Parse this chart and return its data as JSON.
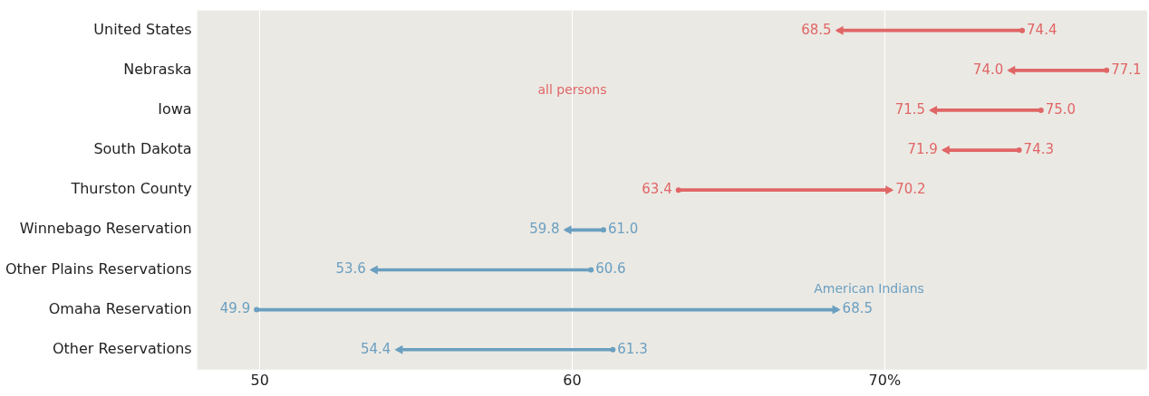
{
  "chart_data": {
    "type": "bar",
    "orientation": "horizontal",
    "categories": [
      "United States",
      "Nebraska",
      "Iowa",
      "South Dakota",
      "Thurston County",
      "Winnebago Reservation",
      "Other Plains Reservations",
      "Omaha Reservation",
      "Other Reservations"
    ],
    "base": [
      74.4,
      77.1,
      75.0,
      74.3,
      63.4,
      61.0,
      60.6,
      49.9,
      61.3
    ],
    "values": [
      -5.9,
      -3.1,
      -3.5,
      -2.4,
      6.8,
      -1.2,
      -7.0,
      18.6,
      -6.9
    ],
    "colors": [
      "#e06666",
      "#e06666",
      "#e06666",
      "#e06666",
      "#e06666",
      "#6a9fc0",
      "#6a9fc0",
      "#6a9fc0",
      "#6a9fc0"
    ],
    "xlim": [
      48,
      78.4
    ],
    "xticks": [
      50,
      60,
      {
        "value": 70,
        "label": "70%"
      }
    ],
    "grid": "x",
    "annotations": [
      {
        "text": "68.5",
        "x": 68.5,
        "y": "United States"
      },
      {
        "text": "74.4",
        "x": 74.4,
        "y": "United States"
      },
      {
        "text": "74.0",
        "x": 74.0,
        "y": "Nebraska"
      },
      {
        "text": "77.1",
        "x": 77.1,
        "y": "Nebraska"
      },
      {
        "text": "71.5",
        "x": 71.5,
        "y": "Iowa"
      },
      {
        "text": "75.0",
        "x": 75.0,
        "y": "Iowa"
      },
      {
        "text": "71.9",
        "x": 71.9,
        "y": "South Dakota"
      },
      {
        "text": "74.3",
        "x": 74.3,
        "y": "South Dakota"
      },
      {
        "text": "63.4",
        "x": 63.4,
        "y": "Thurston County"
      },
      {
        "text": "70.2",
        "x": 70.2,
        "y": "Thurston County"
      },
      {
        "text": "59.8",
        "x": 59.8,
        "y": "Winnebago Reservation"
      },
      {
        "text": "61.0",
        "x": 61.0,
        "y": "Winnebago Reservation"
      },
      {
        "text": "53.6",
        "x": 53.6,
        "y": "Other Plains Reservations"
      },
      {
        "text": "60.6",
        "x": 60.6,
        "y": "Other Plains Reservations"
      },
      {
        "text": "49.9",
        "x": 49.9,
        "y": "Omaha Reservation"
      },
      {
        "text": "68.5",
        "x": 68.5,
        "y": "Omaha Reservation"
      },
      {
        "text": "54.4",
        "x": 54.4,
        "y": "Other Reservations"
      },
      {
        "text": "61.3",
        "x": 61.3,
        "y": "Other Reservations"
      },
      "all persons",
      "American Indians"
    ]
  }
}
